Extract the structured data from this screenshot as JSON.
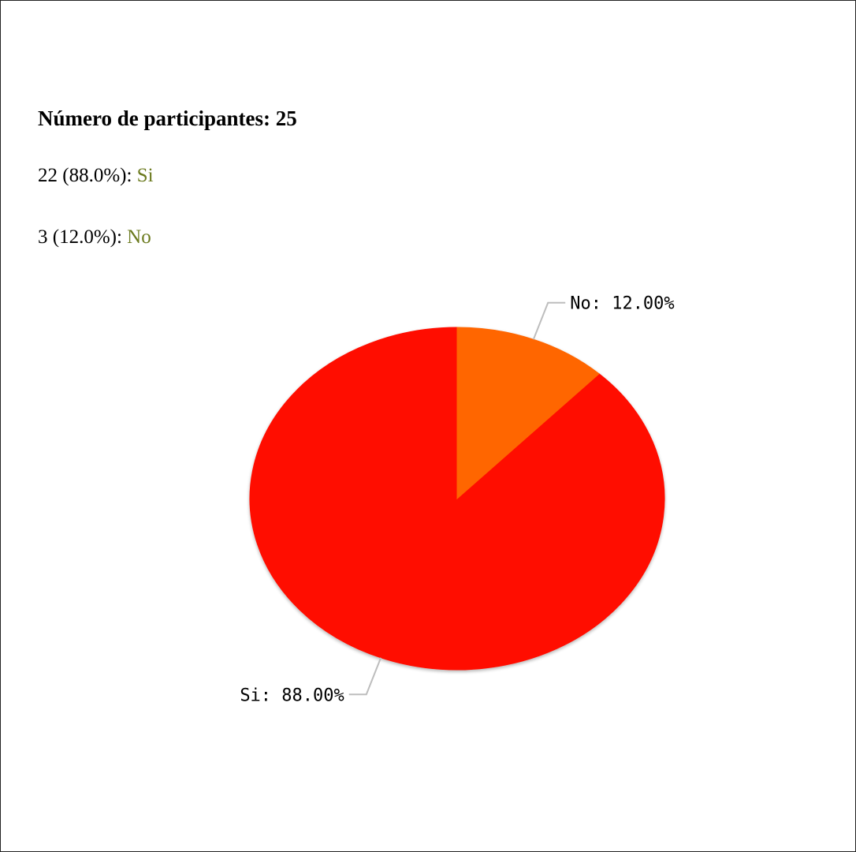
{
  "summary": {
    "participants_label": "Número de participantes:",
    "participants_count": "25",
    "results": [
      {
        "count_text": "22 (88.0%):",
        "answer": "Si"
      },
      {
        "count_text": "3 (12.0%):",
        "answer": "No"
      }
    ]
  },
  "colors": {
    "answer_text": "#6b7a1e",
    "si_slice": "#ff1100",
    "no_slice": "#ff6600"
  },
  "chart_data": {
    "type": "pie",
    "categories": [
      "Si",
      "No"
    ],
    "values": [
      88.0,
      12.0
    ],
    "data_labels": [
      "Si: 88.00%",
      "No: 12.00%"
    ],
    "legend": "none"
  }
}
